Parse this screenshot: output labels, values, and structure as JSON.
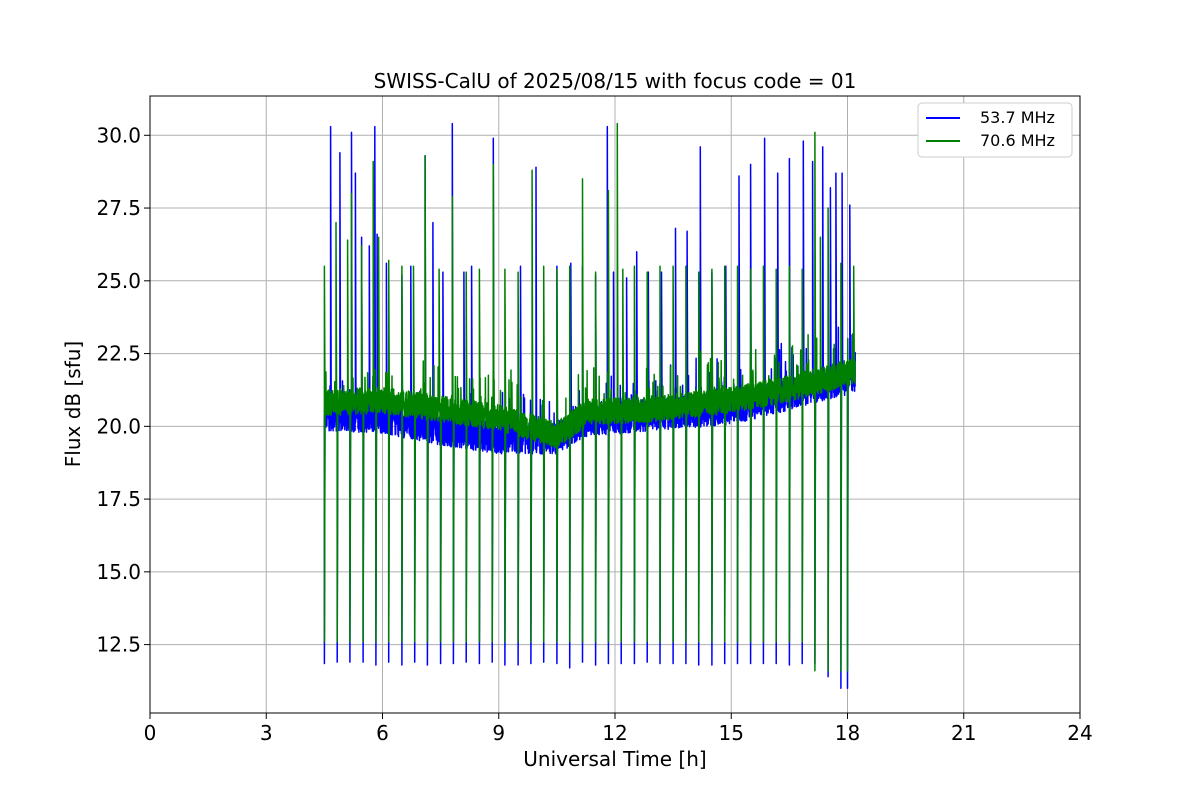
{
  "chart_data": {
    "type": "line",
    "title": "SWISS-CalU of 2025/08/15 with focus code = 01",
    "xlabel": "Universal Time [h]",
    "ylabel": "Flux dB [sfu]",
    "xlim": [
      0,
      24
    ],
    "ylim": [
      10.15,
      31.35
    ],
    "xticks": [
      0,
      3,
      6,
      9,
      12,
      15,
      18,
      21,
      24
    ],
    "yticks": [
      12.5,
      15.0,
      17.5,
      20.0,
      22.5,
      25.0,
      27.5,
      30.0
    ],
    "xtick_labels": [
      "0",
      "3",
      "6",
      "9",
      "12",
      "15",
      "18",
      "21",
      "24"
    ],
    "ytick_labels": [
      "12.5",
      "15.0",
      "17.5",
      "20.0",
      "22.5",
      "25.0",
      "27.5",
      "30.0"
    ],
    "grid": true,
    "legend_position": "top-right",
    "x_start": 4.5,
    "x_end": 18.2,
    "series": [
      {
        "name": "53.7 MHz",
        "color": "#0000ff",
        "baseline": [
          [
            4.5,
            20.4
          ],
          [
            6.0,
            20.3
          ],
          [
            7.5,
            19.9
          ],
          [
            9.0,
            19.6
          ],
          [
            10.5,
            19.6
          ],
          [
            11.3,
            20.2
          ],
          [
            13.0,
            20.4
          ],
          [
            15.0,
            20.6
          ],
          [
            16.5,
            21.1
          ],
          [
            18.2,
            21.7
          ]
        ],
        "dips": [
          [
            4.5,
            11.85
          ],
          [
            4.83,
            11.9
          ],
          [
            5.16,
            11.9
          ],
          [
            5.5,
            11.9
          ],
          [
            5.83,
            11.8
          ],
          [
            6.16,
            11.9
          ],
          [
            6.5,
            11.8
          ],
          [
            6.83,
            11.9
          ],
          [
            7.16,
            11.8
          ],
          [
            7.5,
            11.85
          ],
          [
            7.83,
            11.85
          ],
          [
            8.16,
            11.9
          ],
          [
            8.5,
            11.85
          ],
          [
            8.83,
            11.9
          ],
          [
            9.16,
            11.8
          ],
          [
            9.5,
            11.8
          ],
          [
            9.83,
            11.85
          ],
          [
            10.16,
            11.9
          ],
          [
            10.5,
            11.85
          ],
          [
            10.83,
            11.7
          ],
          [
            11.16,
            11.9
          ],
          [
            11.5,
            11.8
          ],
          [
            11.83,
            11.85
          ],
          [
            12.16,
            11.85
          ],
          [
            12.5,
            11.85
          ],
          [
            12.83,
            11.9
          ],
          [
            13.16,
            11.85
          ],
          [
            13.5,
            11.85
          ],
          [
            13.83,
            11.85
          ],
          [
            14.16,
            11.8
          ],
          [
            14.5,
            11.8
          ],
          [
            14.83,
            11.85
          ],
          [
            15.16,
            11.85
          ],
          [
            15.5,
            11.85
          ],
          [
            15.83,
            11.85
          ],
          [
            16.16,
            11.85
          ],
          [
            16.5,
            11.8
          ],
          [
            16.83,
            11.85
          ],
          [
            17.16,
            11.85
          ],
          [
            17.5,
            11.4
          ],
          [
            17.83,
            11.0
          ],
          [
            18.0,
            11.0
          ]
        ],
        "peaks": [
          [
            4.66,
            30.3
          ],
          [
            4.9,
            29.4
          ],
          [
            5.2,
            30.1
          ],
          [
            5.3,
            28.7
          ],
          [
            5.46,
            26.5
          ],
          [
            5.66,
            26.2
          ],
          [
            5.8,
            30.3
          ],
          [
            5.86,
            26.6
          ],
          [
            6.1,
            25.6
          ],
          [
            6.5,
            25.2
          ],
          [
            6.73,
            25.5
          ],
          [
            7.1,
            29.3
          ],
          [
            7.3,
            27.0
          ],
          [
            7.56,
            25.3
          ],
          [
            7.8,
            30.4
          ],
          [
            8.1,
            25.3
          ],
          [
            8.3,
            25.5
          ],
          [
            8.86,
            29.9
          ],
          [
            9.56,
            25.5
          ],
          [
            9.96,
            28.9
          ],
          [
            10.5,
            25.5
          ],
          [
            10.86,
            25.6
          ],
          [
            11.16,
            25.5
          ],
          [
            11.5,
            25.2
          ],
          [
            11.8,
            30.3
          ],
          [
            11.96,
            25.3
          ],
          [
            12.3,
            25.1
          ],
          [
            12.56,
            26.0
          ],
          [
            12.86,
            25.3
          ],
          [
            13.2,
            25.3
          ],
          [
            13.56,
            26.8
          ],
          [
            13.86,
            26.7
          ],
          [
            14.2,
            29.6
          ],
          [
            14.5,
            25.3
          ],
          [
            14.86,
            25.5
          ],
          [
            15.2,
            28.6
          ],
          [
            15.5,
            29.0
          ],
          [
            15.86,
            29.9
          ],
          [
            16.2,
            28.7
          ],
          [
            16.5,
            29.2
          ],
          [
            16.86,
            29.8
          ],
          [
            17.1,
            29.1
          ],
          [
            17.36,
            29.6
          ],
          [
            17.56,
            28.2
          ],
          [
            17.7,
            28.7
          ],
          [
            17.86,
            28.7
          ],
          [
            18.06,
            27.6
          ]
        ]
      },
      {
        "name": "70.6 MHz",
        "color": "#008000",
        "baseline": [
          [
            4.5,
            20.8
          ],
          [
            6.0,
            20.9
          ],
          [
            7.5,
            20.6
          ],
          [
            9.0,
            20.3
          ],
          [
            10.5,
            19.7
          ],
          [
            11.3,
            20.5
          ],
          [
            13.0,
            20.6
          ],
          [
            15.0,
            20.9
          ],
          [
            16.5,
            21.3
          ],
          [
            18.2,
            21.9
          ]
        ],
        "dips": [
          [
            4.5,
            12.6
          ],
          [
            4.83,
            12.6
          ],
          [
            5.16,
            12.6
          ],
          [
            5.5,
            12.6
          ],
          [
            5.83,
            12.6
          ],
          [
            6.16,
            12.6
          ],
          [
            6.5,
            12.6
          ],
          [
            6.83,
            12.6
          ],
          [
            7.16,
            12.6
          ],
          [
            7.5,
            12.6
          ],
          [
            7.83,
            12.6
          ],
          [
            8.16,
            12.6
          ],
          [
            8.5,
            12.6
          ],
          [
            8.83,
            12.6
          ],
          [
            9.16,
            12.6
          ],
          [
            9.5,
            12.6
          ],
          [
            9.83,
            12.6
          ],
          [
            10.16,
            12.6
          ],
          [
            10.5,
            12.6
          ],
          [
            10.83,
            12.6
          ],
          [
            11.16,
            12.6
          ],
          [
            11.5,
            12.6
          ],
          [
            11.83,
            12.6
          ],
          [
            12.16,
            12.6
          ],
          [
            12.5,
            12.6
          ],
          [
            12.83,
            12.6
          ],
          [
            13.16,
            12.6
          ],
          [
            13.5,
            12.6
          ],
          [
            13.83,
            12.6
          ],
          [
            14.16,
            12.6
          ],
          [
            14.5,
            12.6
          ],
          [
            14.83,
            12.6
          ],
          [
            15.16,
            12.6
          ],
          [
            15.5,
            12.6
          ],
          [
            15.83,
            12.6
          ],
          [
            16.16,
            12.6
          ],
          [
            16.5,
            12.6
          ],
          [
            16.83,
            12.6
          ],
          [
            17.16,
            11.6
          ],
          [
            17.5,
            11.6
          ],
          [
            17.83,
            11.6
          ],
          [
            18.0,
            11.6
          ]
        ],
        "peaks": [
          [
            4.5,
            25.5
          ],
          [
            4.8,
            27.0
          ],
          [
            5.1,
            26.4
          ],
          [
            5.2,
            28.0
          ],
          [
            5.46,
            26.2
          ],
          [
            5.76,
            29.1
          ],
          [
            5.9,
            26.5
          ],
          [
            6.16,
            25.7
          ],
          [
            6.5,
            25.5
          ],
          [
            6.8,
            25.5
          ],
          [
            7.1,
            29.3
          ],
          [
            7.46,
            25.4
          ],
          [
            7.8,
            27.9
          ],
          [
            8.16,
            25.3
          ],
          [
            8.5,
            25.4
          ],
          [
            8.86,
            29.0
          ],
          [
            9.16,
            25.4
          ],
          [
            9.5,
            25.3
          ],
          [
            9.86,
            28.8
          ],
          [
            10.16,
            25.5
          ],
          [
            10.5,
            25.4
          ],
          [
            10.83,
            25.5
          ],
          [
            11.16,
            28.5
          ],
          [
            11.5,
            25.3
          ],
          [
            11.83,
            28.1
          ],
          [
            12.06,
            30.4
          ],
          [
            12.2,
            25.4
          ],
          [
            12.5,
            25.5
          ],
          [
            12.83,
            25.3
          ],
          [
            13.16,
            25.5
          ],
          [
            13.5,
            25.5
          ],
          [
            13.83,
            25.5
          ],
          [
            14.16,
            25.3
          ],
          [
            14.5,
            25.4
          ],
          [
            14.83,
            25.5
          ],
          [
            15.16,
            25.5
          ],
          [
            15.5,
            25.4
          ],
          [
            15.83,
            25.5
          ],
          [
            16.16,
            25.4
          ],
          [
            16.5,
            25.5
          ],
          [
            16.83,
            25.4
          ],
          [
            17.16,
            30.1
          ],
          [
            17.3,
            26.5
          ],
          [
            17.5,
            27.5
          ],
          [
            17.83,
            25.6
          ],
          [
            18.16,
            25.5
          ]
        ]
      }
    ]
  }
}
